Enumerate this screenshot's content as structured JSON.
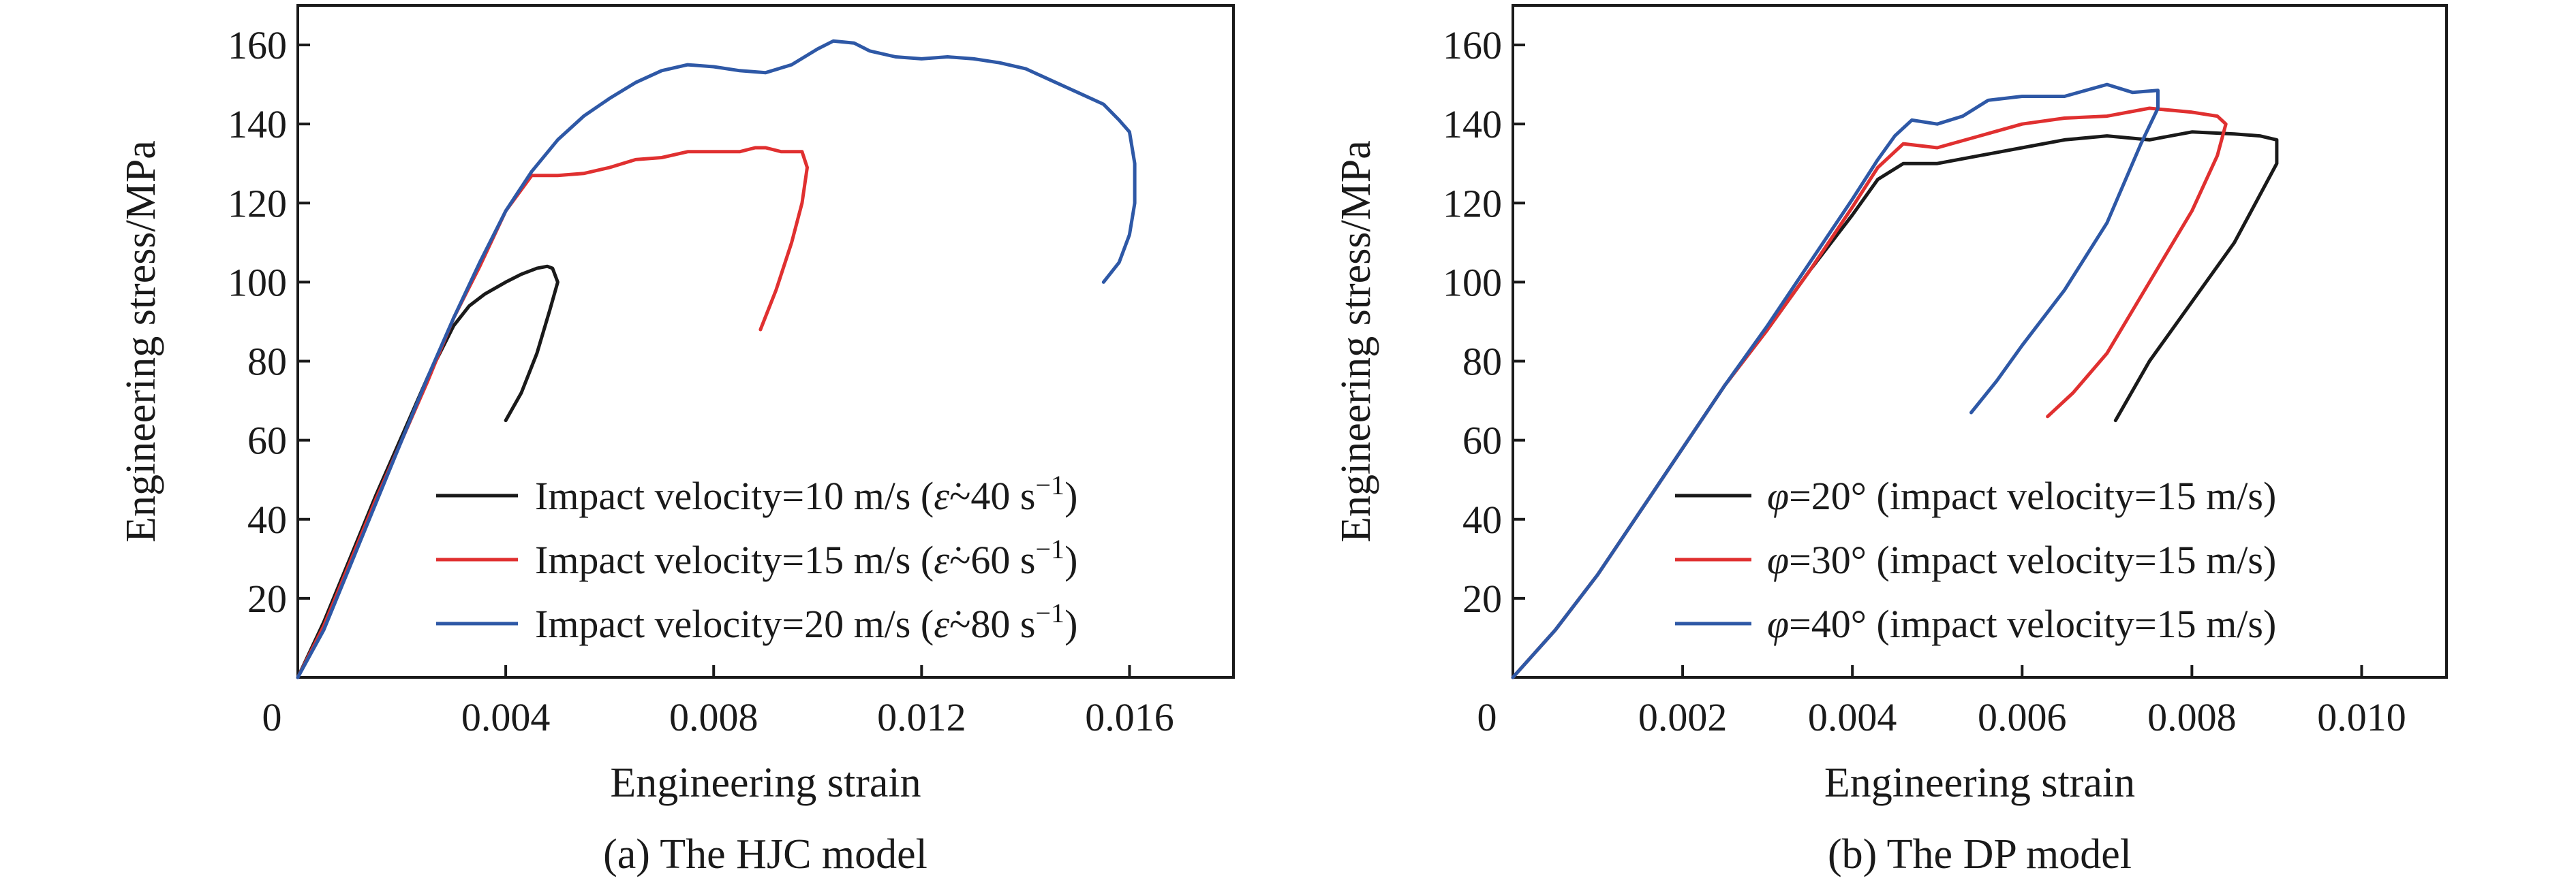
{
  "chart_data": [
    {
      "type": "line",
      "caption": "(a) The HJC model",
      "xlabel": "Engineering strain",
      "ylabel": "Engineering stress/MPa",
      "xlim": [
        0,
        0.018
      ],
      "ylim": [
        0,
        170
      ],
      "xticks": [
        0.004,
        0.008,
        0.012,
        0.016
      ],
      "xtick_labels": [
        "0.004",
        "0.008",
        "0.012",
        "0.016"
      ],
      "yticks": [
        20,
        40,
        60,
        80,
        100,
        120,
        140,
        160
      ],
      "ytick_labels": [
        "20",
        "40",
        "60",
        "80",
        "100",
        "120",
        "140",
        "160"
      ],
      "origin_label": "0",
      "grid": false,
      "legend_position": "lower-right",
      "series": [
        {
          "name": "Impact velocity=10 m/s (ε̇~40 s⁻¹)",
          "legend_main": "Impact velocity=10 m/s (",
          "legend_tail": "~40 s",
          "legend_sup": "−1",
          "legend_close": ")",
          "color": "#1a1a1a",
          "x": [
            0,
            0.0005,
            0.001,
            0.0015,
            0.002,
            0.0025,
            0.003,
            0.0033,
            0.0036,
            0.004,
            0.0043,
            0.0046,
            0.0048,
            0.0049,
            0.005,
            0.00485,
            0.0046,
            0.0043,
            0.004
          ],
          "y": [
            0,
            14,
            30,
            46,
            61,
            76,
            89,
            94,
            97,
            100,
            102,
            103.5,
            104,
            103.5,
            100,
            93,
            82,
            72,
            65
          ]
        },
        {
          "name": "Impact velocity=15 m/s (ε̇~60 s⁻¹)",
          "legend_main": "Impact velocity=15 m/s (",
          "legend_tail": "~60 s",
          "legend_sup": "−1",
          "legend_close": ")",
          "color": "#e03030",
          "x": [
            0,
            0.0005,
            0.001,
            0.0015,
            0.002,
            0.0025,
            0.003,
            0.0035,
            0.004,
            0.0045,
            0.005,
            0.0055,
            0.006,
            0.0065,
            0.007,
            0.0075,
            0.008,
            0.0085,
            0.0088,
            0.009,
            0.0093,
            0.0095,
            0.0097,
            0.0098,
            0.0097,
            0.0095,
            0.0092,
            0.0089
          ],
          "y": [
            0,
            13,
            29,
            45,
            60,
            75,
            91,
            104,
            118,
            127,
            127,
            127.5,
            129,
            131,
            131.5,
            133,
            133,
            133,
            134,
            134,
            133,
            133,
            133,
            129,
            120,
            110,
            98,
            88
          ]
        },
        {
          "name": "Impact velocity=20 m/s (ε̇~80 s⁻¹)",
          "legend_main": "Impact velocity=20 m/s (",
          "legend_tail": "~80 s",
          "legend_sup": "−1",
          "legend_close": ")",
          "color": "#2e58a6",
          "x": [
            0,
            0.0005,
            0.001,
            0.0015,
            0.002,
            0.0025,
            0.003,
            0.0035,
            0.004,
            0.0045,
            0.005,
            0.0055,
            0.006,
            0.0065,
            0.007,
            0.0075,
            0.008,
            0.0085,
            0.009,
            0.0095,
            0.01,
            0.0103,
            0.0107,
            0.011,
            0.0115,
            0.012,
            0.0125,
            0.013,
            0.0135,
            0.014,
            0.0145,
            0.015,
            0.0155,
            0.0158,
            0.016,
            0.0161,
            0.0161,
            0.016,
            0.0158,
            0.0155
          ],
          "y": [
            0,
            12,
            28,
            44,
            60,
            76,
            91,
            105,
            118,
            128,
            136,
            142,
            146.5,
            150.5,
            153.5,
            155,
            154.5,
            153.5,
            153,
            155,
            159,
            161,
            160.5,
            158.5,
            157,
            156.5,
            157,
            156.5,
            155.5,
            154,
            151,
            148,
            145,
            141,
            138,
            130,
            120,
            112,
            105,
            100
          ]
        }
      ]
    },
    {
      "type": "line",
      "caption": "(b) The DP model",
      "xlabel": "Engineering strain",
      "ylabel": "Engineering stress/MPa",
      "xlim": [
        0,
        0.011
      ],
      "ylim": [
        0,
        170
      ],
      "xticks": [
        0.002,
        0.004,
        0.006,
        0.008,
        0.01
      ],
      "xtick_labels": [
        "0.002",
        "0.004",
        "0.006",
        "0.008",
        "0.010"
      ],
      "yticks": [
        20,
        40,
        60,
        80,
        100,
        120,
        140,
        160
      ],
      "ytick_labels": [
        "20",
        "40",
        "60",
        "80",
        "100",
        "120",
        "140",
        "160"
      ],
      "origin_label": "0",
      "grid": false,
      "legend_position": "lower-right",
      "series": [
        {
          "name": "φ=20° (impact velocity=15 m/s)",
          "legend_main": "=20° (impact velocity=15 m/s)",
          "color": "#1a1a1a",
          "x": [
            0,
            0.0005,
            0.001,
            0.0015,
            0.002,
            0.0025,
            0.003,
            0.0035,
            0.004,
            0.0043,
            0.0046,
            0.005,
            0.0055,
            0.006,
            0.0065,
            0.007,
            0.0075,
            0.008,
            0.0085,
            0.0088,
            0.009,
            0.009,
            0.0088,
            0.0085,
            0.008,
            0.0075,
            0.0071
          ],
          "y": [
            0,
            12,
            26,
            42,
            58,
            74,
            88,
            103,
            117,
            126,
            130,
            130,
            132,
            134,
            136,
            137,
            136,
            138,
            137.5,
            137,
            136,
            130,
            122,
            110,
            95,
            80,
            65
          ]
        },
        {
          "name": "φ=30° (impact velocity=15 m/s)",
          "legend_main": "=30° (impact velocity=15 m/s)",
          "color": "#e03030",
          "x": [
            0,
            0.0005,
            0.001,
            0.0015,
            0.002,
            0.0025,
            0.003,
            0.0035,
            0.004,
            0.0043,
            0.0046,
            0.005,
            0.0055,
            0.006,
            0.0065,
            0.007,
            0.0075,
            0.008,
            0.0083,
            0.0084,
            0.0083,
            0.008,
            0.0075,
            0.007,
            0.0066,
            0.0063
          ],
          "y": [
            0,
            12,
            26,
            42,
            58,
            74,
            88,
            103,
            119,
            129,
            135,
            134,
            137,
            140,
            141.5,
            142,
            144,
            143,
            142,
            140,
            132,
            118,
            100,
            82,
            72,
            66
          ]
        },
        {
          "name": "φ=40° (impact velocity=15 m/s)",
          "legend_main": "=40° (impact velocity=15 m/s)",
          "color": "#2e58a6",
          "x": [
            0,
            0.0005,
            0.001,
            0.0015,
            0.002,
            0.0025,
            0.003,
            0.0035,
            0.004,
            0.0043,
            0.0045,
            0.0047,
            0.005,
            0.0053,
            0.0056,
            0.006,
            0.0065,
            0.007,
            0.0073,
            0.0076,
            0.0076,
            0.0074,
            0.007,
            0.0065,
            0.006,
            0.0057,
            0.0054
          ],
          "y": [
            0,
            12,
            26,
            42,
            58,
            74,
            89,
            105,
            121,
            131,
            137,
            141,
            140,
            142,
            146,
            147,
            147,
            150,
            148,
            148.5,
            144,
            135,
            115,
            98,
            84,
            75,
            67
          ]
        }
      ]
    }
  ]
}
